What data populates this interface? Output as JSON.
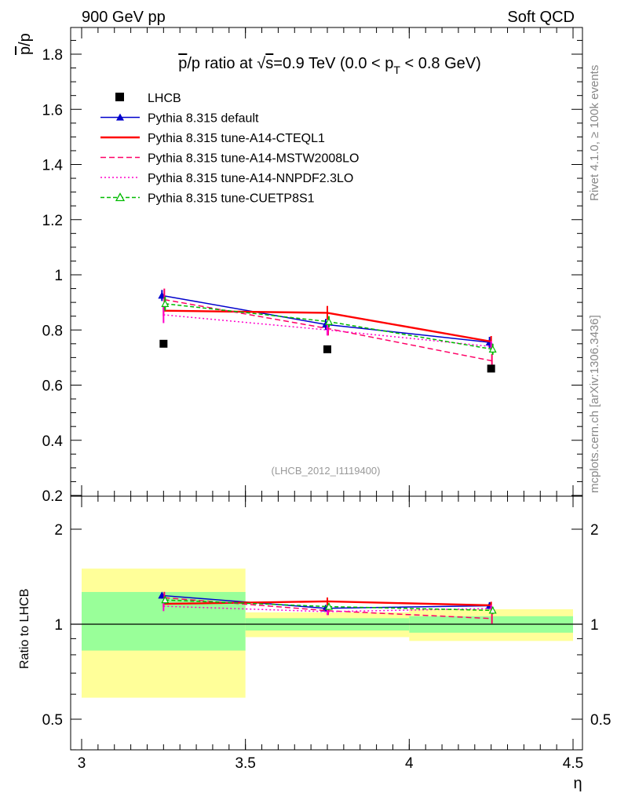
{
  "header": {
    "left": "900 GeV pp",
    "right": "Soft QCD"
  },
  "side_labels": {
    "rivet": "Rivet 4.1.0, ≥ 100k events",
    "mcplots": "mcplots.cern.ch [arXiv:1306.3436]"
  },
  "chart_data": {
    "type": "line",
    "title": "p̅/p ratio at √s=0.9 TeV (0.0 < p_T < 0.8 GeV)",
    "title_parts": {
      "pbar": "p",
      "rest1": "/p ratio at ",
      "sqrt": "√",
      "s": "s",
      "rest2": "=0.9 TeV (0.0 < p",
      "sub": "T",
      "rest3": " < 0.8 GeV)"
    },
    "ylabel_main": "p̅/p",
    "ylabel_ratio": "Ratio to LHCB",
    "xlabel": "η",
    "watermark": "(LHCB_2012_I1119400)",
    "xlim": [
      3.0,
      4.5
    ],
    "ylim_main": [
      0.2,
      1.9
    ],
    "ylim_ratio": [
      0.4,
      2.4
    ],
    "x_ticks": [
      "3",
      "3.5",
      "4",
      "4.5"
    ],
    "x_tick_values": [
      3.0,
      3.5,
      4.0,
      4.5
    ],
    "y_ticks_main": [
      "0.2",
      "0.4",
      "0.6",
      "0.8",
      "1",
      "1.2",
      "1.4",
      "1.6",
      "1.8"
    ],
    "y_tick_values_main": [
      0.2,
      0.4,
      0.6,
      0.8,
      1.0,
      1.2,
      1.4,
      1.6,
      1.8
    ],
    "y_ticks_ratio": [
      "0.5",
      "1",
      "2"
    ],
    "y_tick_values_ratio": [
      0.5,
      1.0,
      2.0
    ],
    "bins": [
      {
        "lo": 3.0,
        "hi": 3.5
      },
      {
        "lo": 3.5,
        "hi": 4.0
      },
      {
        "lo": 4.0,
        "hi": 4.5
      }
    ],
    "x": [
      3.25,
      3.75,
      4.25
    ],
    "data": {
      "name": "LHCB",
      "values": [
        0.75,
        0.73,
        0.66
      ],
      "ratio_band_inner": [
        [
          0.825,
          1.265
        ],
        [
          0.955,
          1.045
        ],
        [
          0.94,
          1.06
        ]
      ],
      "ratio_band_outer": [
        [
          0.585,
          1.5
        ],
        [
          0.91,
          1.09
        ],
        [
          0.885,
          1.115
        ]
      ]
    },
    "series": [
      {
        "name": "Pythia 8.315 default",
        "color": "#0000cc",
        "style": "solid",
        "marker": "triangle-filled",
        "values": [
          0.925,
          0.82,
          0.755
        ],
        "errors": [
          0.02,
          0.02,
          0.02
        ],
        "ratio": [
          1.233,
          1.123,
          1.144
        ],
        "ratio_errors": [
          0.027,
          0.027,
          0.03
        ]
      },
      {
        "name": "Pythia 8.315 tune-A14-CTEQL1",
        "color": "#ff0000",
        "style": "solid",
        "marker": "none",
        "values": [
          0.87,
          0.862,
          0.758
        ],
        "errors": [
          0.02,
          0.025,
          0.02
        ],
        "ratio": [
          1.16,
          1.181,
          1.148
        ],
        "ratio_errors": [
          0.027,
          0.034,
          0.03
        ]
      },
      {
        "name": "Pythia 8.315 tune-A14-MSTW2008LO",
        "color": "#ff0066",
        "style": "dashed",
        "marker": "none",
        "values": [
          0.91,
          0.805,
          0.688
        ],
        "errors": [
          0.04,
          0.025,
          0.025
        ],
        "ratio": [
          1.213,
          1.103,
          1.042
        ],
        "ratio_errors": [
          0.053,
          0.034,
          0.038
        ]
      },
      {
        "name": "Pythia 8.315 tune-A14-NNPDF2.3LO",
        "color": "#ff00cc",
        "style": "dotted",
        "marker": "none",
        "values": [
          0.855,
          0.8,
          0.74
        ],
        "errors": [
          0.03,
          0.02,
          0.02
        ],
        "ratio": [
          1.14,
          1.096,
          1.121
        ],
        "ratio_errors": [
          0.04,
          0.027,
          0.03
        ]
      },
      {
        "name": "Pythia 8.315 tune-CUETP8S1",
        "color": "#00bb00",
        "style": "dashed-small",
        "marker": "triangle-open",
        "values": [
          0.895,
          0.83,
          0.73
        ],
        "errors": [
          0.025,
          0.02,
          0.02
        ],
        "ratio": [
          1.193,
          1.137,
          1.106
        ],
        "ratio_errors": [
          0.033,
          0.027,
          0.03
        ]
      }
    ]
  }
}
